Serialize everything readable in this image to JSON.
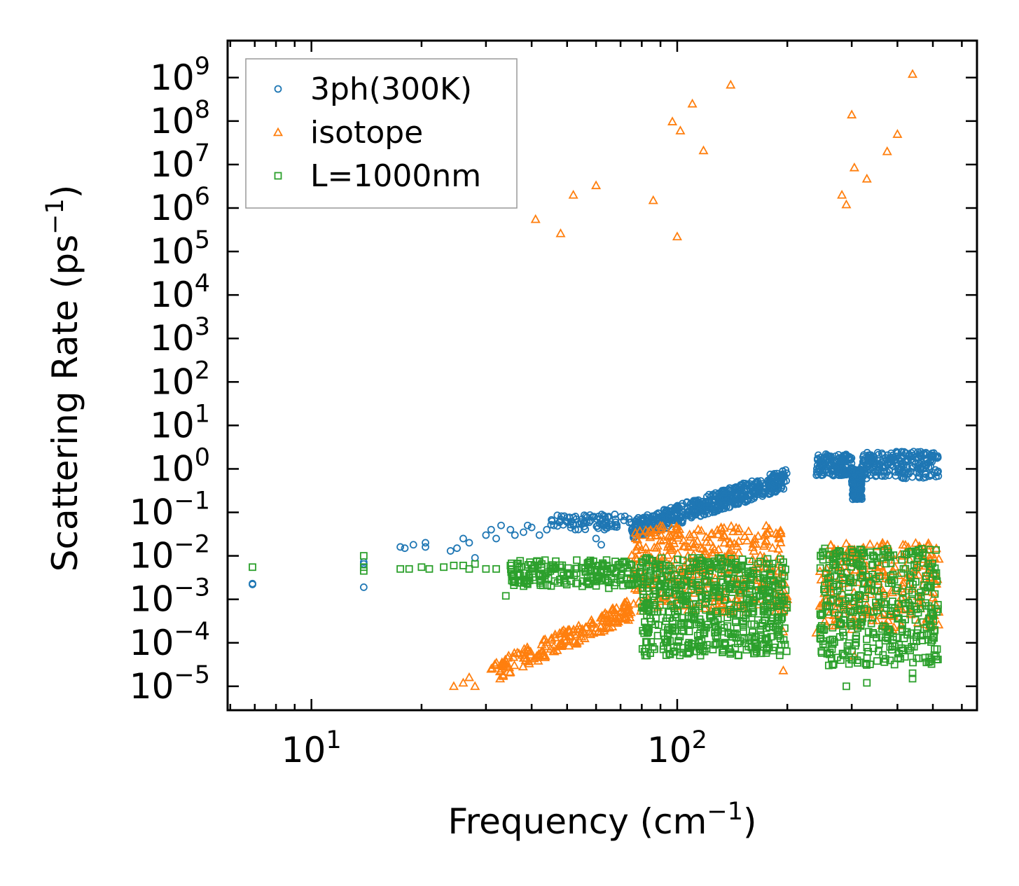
{
  "chart_data": {
    "type": "scatter",
    "xscale": "log",
    "yscale": "log",
    "xlabel": "Frequency (cm",
    "xlabel_exp": "−1",
    "xlabel_close": ")",
    "ylabel": "Scattering Rate (ps",
    "ylabel_exp": "−1",
    "ylabel_close": ")",
    "xlim": [
      5.9,
      660
    ],
    "ylim_log10": [
      -5.55,
      9.85
    ],
    "x_ticks": [
      {
        "value": 10,
        "base": "10",
        "exp": "1"
      },
      {
        "value": 100,
        "base": "10",
        "exp": "2"
      }
    ],
    "y_ticks": [
      {
        "exp_value": 9,
        "base": "10",
        "exp": "9"
      },
      {
        "exp_value": 8,
        "base": "10",
        "exp": "8"
      },
      {
        "exp_value": 7,
        "base": "10",
        "exp": "7"
      },
      {
        "exp_value": 6,
        "base": "10",
        "exp": "6"
      },
      {
        "exp_value": 5,
        "base": "10",
        "exp": "5"
      },
      {
        "exp_value": 4,
        "base": "10",
        "exp": "4"
      },
      {
        "exp_value": 3,
        "base": "10",
        "exp": "3"
      },
      {
        "exp_value": 2,
        "base": "10",
        "exp": "2"
      },
      {
        "exp_value": 1,
        "base": "10",
        "exp": "1"
      },
      {
        "exp_value": 0,
        "base": "10",
        "exp": "0"
      },
      {
        "exp_value": -1,
        "base": "10",
        "exp": "−1"
      },
      {
        "exp_value": -2,
        "base": "10",
        "exp": "−2"
      },
      {
        "exp_value": -3,
        "base": "10",
        "exp": "−3"
      },
      {
        "exp_value": -4,
        "base": "10",
        "exp": "−4"
      },
      {
        "exp_value": -5,
        "base": "10",
        "exp": "−5"
      }
    ],
    "legend_position": "top-left",
    "series": [
      {
        "name": "3ph(300K)",
        "marker": "circle",
        "color": "#1f77b4",
        "points": [
          [
            6.9,
            0.0022
          ],
          [
            6.9,
            0.0023
          ],
          [
            13.9,
            0.0019
          ],
          [
            13.9,
            0.0065
          ],
          [
            13.9,
            0.0072
          ],
          [
            17.5,
            0.016
          ],
          [
            18,
            0.015
          ],
          [
            19,
            0.018
          ],
          [
            20.5,
            0.02
          ],
          [
            20.5,
            0.016
          ],
          [
            24,
            0.013
          ],
          [
            25,
            0.015
          ],
          [
            26,
            0.025
          ],
          [
            27,
            0.02
          ],
          [
            28,
            0.009
          ],
          [
            30,
            0.03
          ],
          [
            31,
            0.04
          ],
          [
            32,
            0.025
          ],
          [
            33,
            0.05
          ],
          [
            35,
            0.04
          ],
          [
            36,
            0.03
          ],
          [
            38,
            0.035
          ],
          [
            39,
            0.05
          ],
          [
            40,
            0.045
          ],
          [
            42,
            0.03
          ],
          [
            44,
            0.04
          ],
          [
            46,
            0.05
          ],
          [
            48,
            0.07
          ],
          [
            50,
            0.06
          ],
          [
            52,
            0.055
          ],
          [
            55,
            0.07
          ],
          [
            58,
            0.065
          ],
          [
            60,
            0.025
          ],
          [
            62,
            0.018
          ],
          [
            65,
            0.08
          ]
        ],
        "bands": [
          {
            "x_from": 45,
            "x_to": 75,
            "y_from": 0.04,
            "y_to": 0.09,
            "n": 80
          },
          {
            "x_from": 75,
            "x_to": 200,
            "y_from": 0.04,
            "y_to": 0.6,
            "n": 520,
            "trend": true
          },
          {
            "x_from": 240,
            "x_to": 300,
            "y_from": 0.7,
            "y_to": 2.2,
            "n": 140
          },
          {
            "x_from": 300,
            "x_to": 320,
            "y_from": 0.2,
            "y_to": 1.0,
            "n": 150
          },
          {
            "x_from": 320,
            "x_to": 520,
            "y_from": 0.6,
            "y_to": 2.5,
            "n": 220
          }
        ]
      },
      {
        "name": "isotope",
        "marker": "triangle",
        "color": "#ff7f0e",
        "points": [
          [
            41,
            550000
          ],
          [
            48,
            260000
          ],
          [
            52,
            2000000
          ],
          [
            60,
            3300000
          ],
          [
            86,
            1500000
          ],
          [
            97,
            97000000
          ],
          [
            100,
            220000
          ],
          [
            102,
            60000000
          ],
          [
            110,
            250000000
          ],
          [
            118,
            21000000
          ],
          [
            140,
            680000000
          ],
          [
            300,
            140000000
          ],
          [
            305,
            8500000
          ],
          [
            330,
            4700000
          ],
          [
            375,
            20000000
          ],
          [
            400,
            50000000
          ],
          [
            440,
            1200000000
          ],
          [
            282,
            2000000
          ],
          [
            290,
            1200000
          ],
          [
            24.5,
            1e-05
          ],
          [
            26,
            1.2e-05
          ],
          [
            27,
            1.6e-05
          ],
          [
            28,
            1e-05
          ],
          [
            31,
            2.5e-05
          ],
          [
            33,
            3e-05
          ],
          [
            195,
            2.3e-05
          ],
          [
            195,
            0.00018
          ],
          [
            240,
            0.00017
          ],
          [
            305,
            5e-05
          ]
        ],
        "bands": [
          {
            "x_from": 31,
            "x_to": 75,
            "y_from": 2e-05,
            "y_to": 0.0006,
            "n": 180,
            "trend": true
          },
          {
            "x_from": 75,
            "x_to": 200,
            "y_from": 0.0005,
            "y_to": 0.05,
            "n": 350
          },
          {
            "x_from": 245,
            "x_to": 520,
            "y_from": 0.0002,
            "y_to": 0.02,
            "n": 250
          }
        ]
      },
      {
        "name": "L=1000nm",
        "marker": "square",
        "color": "#2ca02c",
        "points": [
          [
            6.9,
            0.0055
          ],
          [
            13.9,
            0.0055
          ],
          [
            13.9,
            0.0045
          ],
          [
            13.9,
            0.01
          ],
          [
            17.5,
            0.005
          ],
          [
            18.5,
            0.005
          ],
          [
            20,
            0.0055
          ],
          [
            21,
            0.005
          ],
          [
            23,
            0.0055
          ],
          [
            24.5,
            0.006
          ],
          [
            26,
            0.006
          ],
          [
            27,
            0.005
          ],
          [
            28,
            0.0065
          ],
          [
            30,
            0.005
          ],
          [
            32,
            0.005
          ],
          [
            34,
            0.0012
          ],
          [
            35,
            0.006
          ],
          [
            38,
            0.004
          ],
          [
            40,
            0.005
          ],
          [
            45,
            0.0045
          ],
          [
            50,
            0.004
          ],
          [
            55,
            0.002
          ],
          [
            60,
            0.0035
          ],
          [
            65,
            0.0018
          ],
          [
            280,
            4e-05
          ],
          [
            290,
            1e-05
          ],
          [
            330,
            1.2e-05
          ],
          [
            440,
            1.5e-05
          ],
          [
            440,
            2e-05
          ]
        ],
        "bands": [
          {
            "x_from": 35,
            "x_to": 80,
            "y_from": 0.002,
            "y_to": 0.008,
            "n": 200
          },
          {
            "x_from": 80,
            "x_to": 200,
            "y_from": 5e-05,
            "y_to": 0.009,
            "n": 600
          },
          {
            "x_from": 245,
            "x_to": 520,
            "y_from": 3e-05,
            "y_to": 0.015,
            "n": 420
          }
        ]
      }
    ]
  }
}
